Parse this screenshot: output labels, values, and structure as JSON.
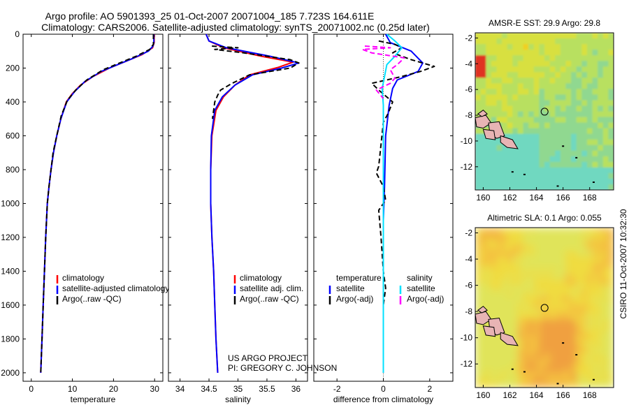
{
  "title": {
    "line1": "Argo profile: AO 5901393_25 01-Oct-2007 20071004_185 7.723S 164.611E",
    "line2": "Climatology: CARS2006. Satellite-adjusted climatology: synTS_20071002.nc (0.25d later)"
  },
  "side_label": "CSIRO 11-Oct-2007 10:32:30",
  "project_note": {
    "line1": "US ARGO PROJECT",
    "line2": "PI: GREGORY C. JOHNSON"
  },
  "colors": {
    "climatology": "#ff0000",
    "satellite": "#0000ff",
    "argo": "#000000",
    "sat_salinity": "#00e0ff",
    "argo_salinity": "#ff00ff",
    "land": "#e8b4b4"
  },
  "chart_data": [
    {
      "id": "temperature",
      "type": "line",
      "xlabel": "temperature",
      "ylabel": "",
      "xlim": [
        -2,
        32
      ],
      "ylim": [
        0,
        2050
      ],
      "y_reversed": true,
      "x_ticks": [
        0,
        10,
        20,
        30
      ],
      "y_ticks": [
        0,
        200,
        400,
        600,
        800,
        1000,
        1200,
        1400,
        1600,
        1800,
        2000
      ],
      "legend": [
        "climatology",
        "satellite-adjusted climatology",
        "Argo(..raw -QC)"
      ],
      "legend_placement": "bottom-left",
      "series": [
        {
          "name": "climatology",
          "color": "#ff0000",
          "points": [
            [
              29.9,
              0
            ],
            [
              29.9,
              50
            ],
            [
              29.5,
              80
            ],
            [
              27,
              120
            ],
            [
              23,
              160
            ],
            [
              19,
              200
            ],
            [
              15,
              250
            ],
            [
              12,
              300
            ],
            [
              10,
              350
            ],
            [
              8.5,
              400
            ],
            [
              7.2,
              500
            ],
            [
              6.2,
              600
            ],
            [
              5.4,
              700
            ],
            [
              4.8,
              800
            ],
            [
              4.3,
              900
            ],
            [
              3.9,
              1000
            ],
            [
              3.5,
              1200
            ],
            [
              3.2,
              1400
            ],
            [
              2.9,
              1600
            ],
            [
              2.6,
              1800
            ],
            [
              2.3,
              2000
            ]
          ]
        },
        {
          "name": "satellite-adjusted climatology",
          "color": "#0000ff",
          "points": [
            [
              29.8,
              0
            ],
            [
              29.8,
              50
            ],
            [
              29.6,
              70
            ],
            [
              28.5,
              100
            ],
            [
              25,
              140
            ],
            [
              21,
              180
            ],
            [
              17,
              220
            ],
            [
              13,
              280
            ],
            [
              10.5,
              340
            ],
            [
              8.6,
              400
            ],
            [
              7.2,
              500
            ],
            [
              6.2,
              600
            ],
            [
              5.4,
              700
            ],
            [
              4.8,
              800
            ],
            [
              4.3,
              900
            ],
            [
              3.9,
              1000
            ],
            [
              3.5,
              1200
            ],
            [
              3.2,
              1400
            ],
            [
              2.9,
              1600
            ],
            [
              2.6,
              1800
            ],
            [
              2.3,
              2000
            ]
          ]
        },
        {
          "name": "Argo(..raw -QC)",
          "color": "#000000",
          "dashed": true,
          "points": [
            [
              29.7,
              0
            ],
            [
              29.7,
              60
            ],
            [
              28.8,
              90
            ],
            [
              25.5,
              130
            ],
            [
              21.5,
              170
            ],
            [
              17.5,
              210
            ],
            [
              13.5,
              270
            ],
            [
              10.8,
              330
            ],
            [
              8.8,
              390
            ],
            [
              7.3,
              480
            ],
            [
              6.2,
              600
            ],
            [
              5.3,
              700
            ],
            [
              4.8,
              800
            ],
            [
              4.3,
              900
            ],
            [
              3.9,
              1000
            ],
            [
              3.5,
              1200
            ],
            [
              3.2,
              1400
            ],
            [
              2.9,
              1600
            ],
            [
              2.6,
              1800
            ],
            [
              2.3,
              2000
            ]
          ]
        }
      ]
    },
    {
      "id": "salinity",
      "type": "line",
      "xlabel": "salinity",
      "ylabel": "",
      "xlim": [
        33.8,
        36.2
      ],
      "ylim": [
        0,
        2050
      ],
      "y_reversed": true,
      "x_ticks": [
        34,
        34.5,
        35,
        35.5,
        36
      ],
      "legend": [
        "climatology",
        "satellite adj. clim.",
        "Argo(..raw -QC)"
      ],
      "legend_placement": "bottom-right",
      "series": [
        {
          "name": "climatology",
          "color": "#ff0000",
          "points": [
            [
              34.45,
              0
            ],
            [
              34.5,
              40
            ],
            [
              34.75,
              80
            ],
            [
              35.4,
              130
            ],
            [
              35.95,
              165
            ],
            [
              35.7,
              195
            ],
            [
              35.2,
              240
            ],
            [
              34.95,
              300
            ],
            [
              34.75,
              370
            ],
            [
              34.62,
              450
            ],
            [
              34.55,
              600
            ],
            [
              34.53,
              800
            ],
            [
              34.53,
              1000
            ],
            [
              34.55,
              1200
            ],
            [
              34.58,
              1400
            ],
            [
              34.6,
              1600
            ],
            [
              34.62,
              1800
            ],
            [
              34.65,
              2000
            ]
          ]
        },
        {
          "name": "satellite adj. clim.",
          "color": "#0000ff",
          "points": [
            [
              34.45,
              0
            ],
            [
              34.5,
              40
            ],
            [
              34.8,
              80
            ],
            [
              35.55,
              130
            ],
            [
              36.05,
              170
            ],
            [
              35.75,
              200
            ],
            [
              35.25,
              240
            ],
            [
              34.95,
              300
            ],
            [
              34.73,
              370
            ],
            [
              34.6,
              450
            ],
            [
              34.54,
              600
            ],
            [
              34.53,
              800
            ],
            [
              34.53,
              1000
            ],
            [
              34.55,
              1200
            ],
            [
              34.58,
              1400
            ],
            [
              34.6,
              1600
            ],
            [
              34.62,
              1800
            ],
            [
              34.65,
              2000
            ]
          ]
        },
        {
          "name": "Argo(..raw -QC)",
          "color": "#000000",
          "dashed": true,
          "points": [
            [
              34.55,
              70
            ],
            [
              34.75,
              75
            ],
            [
              35.0,
              80
            ],
            [
              34.6,
              90
            ],
            [
              35.1,
              110
            ],
            [
              35.9,
              150
            ],
            [
              36.05,
              170
            ],
            [
              35.9,
              200
            ],
            [
              35.2,
              240
            ],
            [
              34.9,
              290
            ],
            [
              34.7,
              330
            ],
            [
              34.65,
              360
            ],
            [
              34.6,
              400
            ],
            [
              34.56,
              500
            ]
          ]
        }
      ]
    },
    {
      "id": "difference",
      "type": "line",
      "xlabel": "difference from climatology",
      "ylabel": "",
      "xlim": [
        -3,
        3
      ],
      "ylim": [
        0,
        2050
      ],
      "y_reversed": true,
      "x_ticks": [
        -2,
        0,
        2
      ],
      "legend_groups": [
        {
          "title": "temperature",
          "entries": [
            "satellite",
            "Argo(-adj)"
          ]
        },
        {
          "title": "salinity",
          "entries": [
            "satellite",
            "Argo(-adj)"
          ]
        }
      ],
      "legend_placement": "bottom",
      "series": [
        {
          "name": "temperature satellite",
          "color": "#0000ff",
          "points": [
            [
              0.1,
              0
            ],
            [
              0.3,
              50
            ],
            [
              1.2,
              100
            ],
            [
              1.7,
              170
            ],
            [
              1.5,
              220
            ],
            [
              0.6,
              270
            ],
            [
              0.4,
              320
            ],
            [
              0.25,
              420
            ],
            [
              0.1,
              600
            ],
            [
              0.05,
              900
            ],
            [
              0,
              1100
            ],
            [
              0,
              1500
            ],
            [
              0,
              2000
            ]
          ]
        },
        {
          "name": "temperature Argo(-adj)",
          "color": "#000000",
          "dashed": true,
          "points": [
            [
              -0.2,
              40
            ],
            [
              0.5,
              60
            ],
            [
              0.8,
              80
            ],
            [
              0.4,
              110
            ],
            [
              1.2,
              150
            ],
            [
              2.2,
              190
            ],
            [
              1.6,
              220
            ],
            [
              0.8,
              250
            ],
            [
              -0.5,
              290
            ],
            [
              -0.2,
              330
            ],
            [
              0.4,
              400
            ],
            [
              0.2,
              470
            ],
            [
              0,
              520
            ],
            [
              -0.1,
              650
            ],
            [
              -0.2,
              780
            ],
            [
              -0.3,
              820
            ],
            [
              0,
              900
            ],
            [
              0.1,
              980
            ],
            [
              -0.2,
              1040
            ],
            [
              -0.1,
              1200
            ],
            [
              0,
              1400
            ],
            [
              0.1,
              1500
            ],
            [
              0,
              1600
            ],
            [
              0,
              2000
            ]
          ]
        },
        {
          "name": "salinity satellite",
          "color": "#00e0ff",
          "points": [
            [
              0.15,
              0
            ],
            [
              0.5,
              40
            ],
            [
              0.8,
              80
            ],
            [
              0.5,
              130
            ],
            [
              0.15,
              180
            ],
            [
              0.05,
              250
            ],
            [
              -0.05,
              320
            ],
            [
              0,
              420
            ],
            [
              0,
              600
            ],
            [
              0,
              1000
            ],
            [
              0,
              2000
            ]
          ]
        },
        {
          "name": "salinity Argo(-adj)",
          "color": "#ff00ff",
          "dashed": true,
          "points": [
            [
              -0.8,
              70
            ],
            [
              0.3,
              80
            ],
            [
              -0.9,
              90
            ],
            [
              -0.5,
              110
            ],
            [
              0.9,
              140
            ],
            [
              0.6,
              180
            ],
            [
              0.3,
              210
            ],
            [
              0.5,
              260
            ],
            [
              0.3,
              290
            ],
            [
              -0.3,
              330
            ],
            [
              0,
              380
            ]
          ]
        }
      ]
    },
    {
      "id": "sst-map",
      "type": "heatmap",
      "title": "AMSR-E SST: 29.9 Argo: 29.8",
      "xlim": [
        159.4,
        169.8
      ],
      "ylim": [
        -13.8,
        -1.6
      ],
      "x_ticks": [
        160,
        162,
        164,
        166,
        168
      ],
      "y_ticks": [
        -2,
        -4,
        -6,
        -8,
        -10,
        -12
      ],
      "marker": [
        164.611,
        -7.723
      ]
    },
    {
      "id": "sla-map",
      "type": "heatmap",
      "title": "Altimetric SLA: 0.1 Argo: 0.055",
      "xlim": [
        159.4,
        169.8
      ],
      "ylim": [
        -13.8,
        -1.6
      ],
      "x_ticks": [
        160,
        162,
        164,
        166,
        168
      ],
      "y_ticks": [
        -2,
        -4,
        -6,
        -8,
        -10,
        -12
      ],
      "marker": [
        164.611,
        -7.723
      ]
    }
  ]
}
